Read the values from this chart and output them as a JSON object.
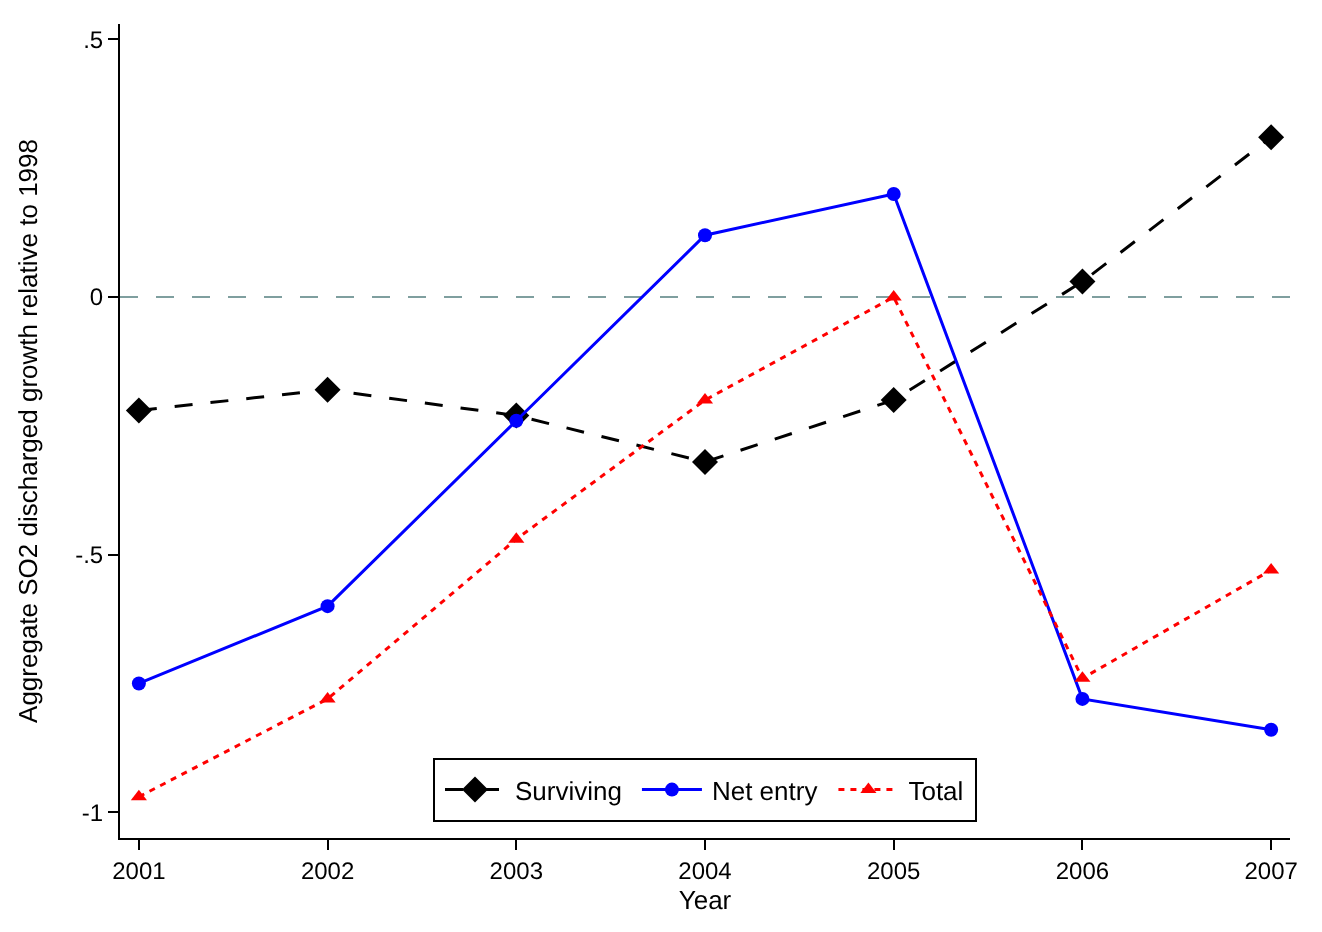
{
  "chart_data": {
    "type": "line",
    "xlabel": "Year",
    "ylabel": "Aggregate SO2 discharged growth relative to 1998",
    "x": [
      2001,
      2002,
      2003,
      2004,
      2005,
      2006,
      2007
    ],
    "series": [
      {
        "name": "Surviving",
        "color": "#000000",
        "marker": "diamond",
        "line_style": "dashed",
        "values": [
          -0.22,
          -0.18,
          -0.23,
          -0.32,
          -0.2,
          0.03,
          0.31
        ]
      },
      {
        "name": "Net entry",
        "color": "#0000ff",
        "marker": "circle",
        "line_style": "solid",
        "values": [
          -0.75,
          -0.6,
          -0.24,
          0.12,
          0.2,
          -0.78,
          -0.84
        ]
      },
      {
        "name": "Total",
        "color": "#ff0000",
        "marker": "triangle",
        "line_style": "dotted",
        "values": [
          -0.97,
          -0.78,
          -0.47,
          -0.2,
          0.0,
          -0.74,
          -0.53
        ]
      }
    ],
    "xlim": [
      2000.9,
      2007.1
    ],
    "xticks": [
      2001,
      2002,
      2003,
      2004,
      2005,
      2006,
      2007
    ],
    "ylim": [
      -1.05,
      0.53
    ],
    "yticks": [
      {
        "value": -1,
        "label": "-1"
      },
      {
        "value": -0.5,
        "label": "-.5"
      },
      {
        "value": 0,
        "label": "0"
      },
      {
        "value": 0.5,
        "label": ".5"
      }
    ],
    "ref_lines": [
      {
        "axis": "y",
        "value": 0,
        "color": "#7f9f9f",
        "line_style": "dashed"
      }
    ],
    "grid": false,
    "legend": "bottom"
  }
}
